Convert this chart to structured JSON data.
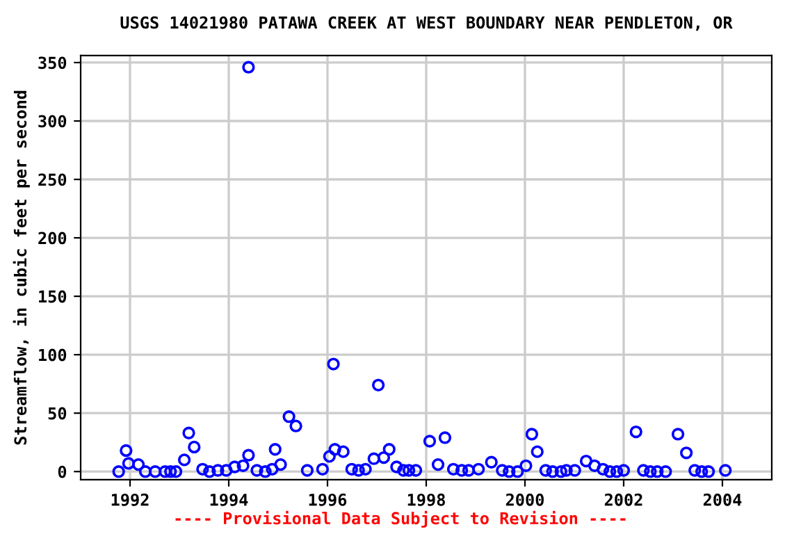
{
  "chart_data": {
    "type": "scatter",
    "title": "USGS 14021980 PATAWA CREEK AT WEST BOUNDARY NEAR PENDLETON, OR",
    "ylabel": "Streamflow, in cubic feet per second",
    "annotations": [
      "---- Provisional Data Subject to Revision ----"
    ],
    "xlim": [
      1991,
      2005
    ],
    "xticks": [
      1992,
      1994,
      1996,
      1998,
      2000,
      2002,
      2004
    ],
    "ylim": [
      -7,
      356
    ],
    "yticks": [
      0,
      50,
      100,
      150,
      200,
      250,
      300,
      350
    ],
    "grid": true,
    "marker": "circle",
    "series": [
      {
        "color": "#0000ff",
        "x": [
          1991.77,
          1991.92,
          1991.97,
          1992.17,
          1992.31,
          1992.51,
          1992.71,
          1992.82,
          1992.93,
          1993.1,
          1993.19,
          1993.3,
          1993.47,
          1993.61,
          1993.78,
          1993.95,
          1994.12,
          1994.29,
          1994.4,
          1994.4,
          1994.57,
          1994.74,
          1994.88,
          1994.94,
          1995.05,
          1995.22,
          1995.36,
          1995.59,
          1995.9,
          1996.04,
          1996.12,
          1996.15,
          1996.32,
          1996.49,
          1996.63,
          1996.77,
          1996.94,
          1997.03,
          1997.14,
          1997.25,
          1997.4,
          1997.54,
          1997.65,
          1997.79,
          1998.07,
          1998.24,
          1998.38,
          1998.55,
          1998.72,
          1998.86,
          1999.06,
          1999.32,
          1999.54,
          1999.68,
          1999.85,
          2000.02,
          2000.14,
          2000.25,
          2000.42,
          2000.56,
          2000.73,
          2000.84,
          2001.01,
          2001.24,
          2001.41,
          2001.58,
          2001.72,
          2001.86,
          2002.0,
          2002.25,
          2002.4,
          2002.54,
          2002.68,
          2002.85,
          2003.1,
          2003.27,
          2003.44,
          2003.58,
          2003.72,
          2004.06
        ],
        "values": [
          0,
          18,
          7,
          6,
          0,
          0,
          0,
          0,
          0,
          10,
          33,
          21,
          2,
          0,
          1,
          1,
          4,
          5,
          346,
          14,
          1,
          0,
          2,
          19,
          6,
          47,
          39,
          1,
          2,
          13,
          92,
          19,
          17,
          2,
          1,
          2,
          11,
          74,
          12,
          19,
          4,
          1,
          1,
          1,
          26,
          6,
          29,
          2,
          1,
          1,
          2,
          8,
          1,
          0,
          0,
          5,
          32,
          17,
          1,
          0,
          0,
          1,
          1,
          9,
          5,
          2,
          0,
          0,
          1,
          34,
          1,
          0,
          0,
          0,
          32,
          16,
          1,
          0,
          0,
          1
        ]
      }
    ]
  }
}
